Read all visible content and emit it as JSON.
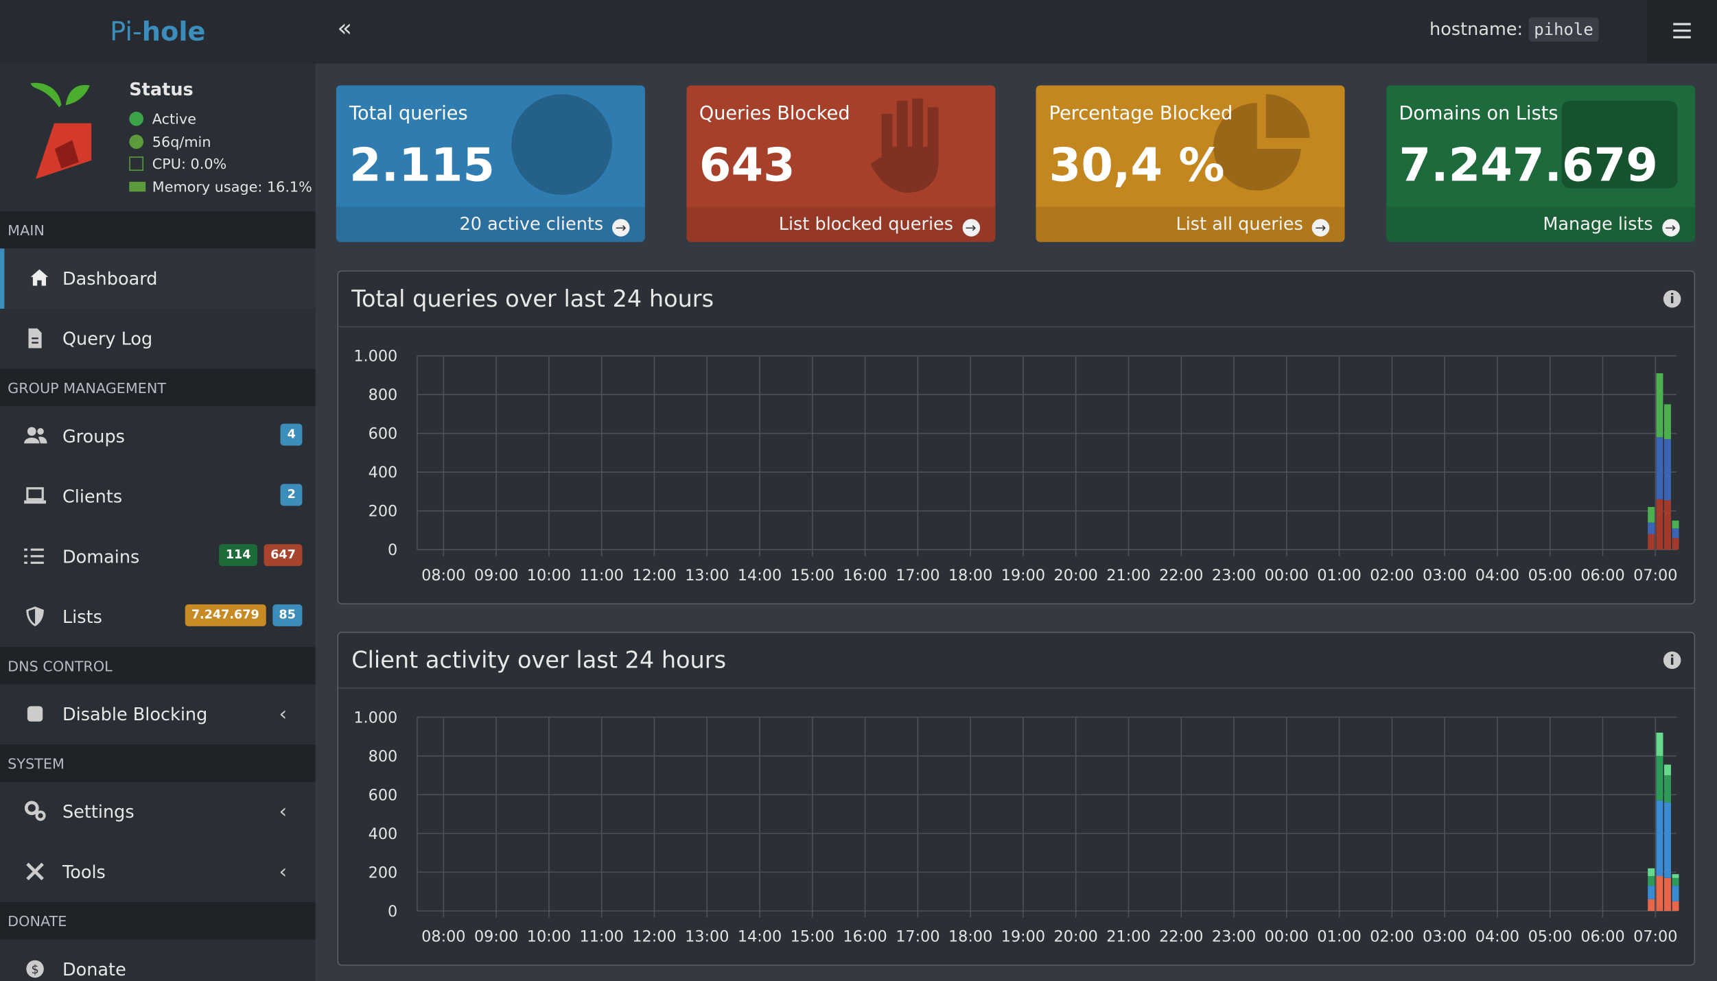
{
  "header": {
    "logo_pi": "Pi-",
    "logo_hole": "hole",
    "hostname_label": "hostname:",
    "hostname": "pihole"
  },
  "status": {
    "title": "Status",
    "active": "Active",
    "rate": "56q/min",
    "cpu": "CPU: 0.0%",
    "memory": "Memory usage: 16.1%"
  },
  "sidebar": [
    {
      "section": "MAIN",
      "items": [
        {
          "label": "Dashboard",
          "icon": "home",
          "active": true
        },
        {
          "label": "Query Log",
          "icon": "file"
        }
      ]
    },
    {
      "section": "GROUP MANAGEMENT",
      "items": [
        {
          "label": "Groups",
          "icon": "users",
          "badges": [
            {
              "text": "4",
              "color": "#3c8dbc"
            }
          ]
        },
        {
          "label": "Clients",
          "icon": "laptop",
          "badges": [
            {
              "text": "2",
              "color": "#3c8dbc"
            }
          ]
        },
        {
          "label": "Domains",
          "icon": "list",
          "badges": [
            {
              "text": "114",
              "color": "#1e6b3a"
            },
            {
              "text": "647",
              "color": "#a8432d"
            }
          ]
        },
        {
          "label": "Lists",
          "icon": "shield",
          "badges": [
            {
              "text": "7.247.679",
              "color": "#c88a22"
            },
            {
              "text": "85",
              "color": "#3c8dbc"
            }
          ]
        }
      ]
    },
    {
      "section": "DNS CONTROL",
      "items": [
        {
          "label": "Disable Blocking",
          "icon": "stop",
          "chevron": true
        }
      ]
    },
    {
      "section": "SYSTEM",
      "items": [
        {
          "label": "Settings",
          "icon": "gear",
          "chevron": true
        },
        {
          "label": "Tools",
          "icon": "tools",
          "chevron": true
        }
      ]
    },
    {
      "section": "DONATE",
      "items": [
        {
          "label": "Donate",
          "icon": "coin"
        }
      ]
    }
  ],
  "cards": [
    {
      "title": "Total queries",
      "value": "2.115",
      "link": "20 active clients",
      "color": "#2f7cb0",
      "icon": "globe"
    },
    {
      "title": "Queries Blocked",
      "value": "643",
      "link": "List blocked queries",
      "color": "#a6402b",
      "icon": "hand"
    },
    {
      "title": "Percentage Blocked",
      "value": "30,4 %",
      "link": "List all queries",
      "color": "#c4861f",
      "icon": "pie"
    },
    {
      "title": "Domains on Lists",
      "value": "7.247.679",
      "link": "Manage lists",
      "color": "#1d6a3c",
      "icon": "listbox"
    }
  ],
  "chart_data": [
    {
      "type": "bar",
      "stacked": true,
      "title": "Total queries over last 24 hours",
      "grid": true,
      "xlim": [
        -0.5,
        23.4
      ],
      "ylim": [
        0,
        1000
      ],
      "xticks": [
        {
          "value": 0,
          "label": "08:00"
        },
        {
          "value": 1,
          "label": "09:00"
        },
        {
          "value": 2,
          "label": "10:00"
        },
        {
          "value": 3,
          "label": "11:00"
        },
        {
          "value": 4,
          "label": "12:00"
        },
        {
          "value": 5,
          "label": "13:00"
        },
        {
          "value": 6,
          "label": "14:00"
        },
        {
          "value": 7,
          "label": "15:00"
        },
        {
          "value": 8,
          "label": "16:00"
        },
        {
          "value": 9,
          "label": "17:00"
        },
        {
          "value": 10,
          "label": "18:00"
        },
        {
          "value": 11,
          "label": "19:00"
        },
        {
          "value": 12,
          "label": "20:00"
        },
        {
          "value": 13,
          "label": "21:00"
        },
        {
          "value": 14,
          "label": "22:00"
        },
        {
          "value": 15,
          "label": "23:00"
        },
        {
          "value": 16,
          "label": "00:00"
        },
        {
          "value": 17,
          "label": "01:00"
        },
        {
          "value": 18,
          "label": "02:00"
        },
        {
          "value": 19,
          "label": "03:00"
        },
        {
          "value": 20,
          "label": "04:00"
        },
        {
          "value": 21,
          "label": "05:00"
        },
        {
          "value": 22,
          "label": "06:00"
        },
        {
          "value": 23,
          "label": "07:00"
        }
      ],
      "yticks": [
        0,
        200,
        400,
        600,
        800,
        {
          "value": 1000,
          "label": "1.000"
        }
      ],
      "x": [
        22.92,
        23.08,
        23.23,
        23.38
      ],
      "series": [
        {
          "color": "#a33a2c",
          "values": [
            80,
            260,
            255,
            60
          ]
        },
        {
          "color": "#3c64b4",
          "values": [
            60,
            320,
            315,
            50
          ]
        },
        {
          "color": "#4caf50",
          "values": [
            80,
            330,
            180,
            40
          ]
        }
      ]
    },
    {
      "type": "bar",
      "stacked": true,
      "title": "Client activity over last 24 hours",
      "grid": true,
      "xlim": [
        -0.5,
        23.4
      ],
      "ylim": [
        0,
        1000
      ],
      "xticks": [
        {
          "value": 0,
          "label": "08:00"
        },
        {
          "value": 1,
          "label": "09:00"
        },
        {
          "value": 2,
          "label": "10:00"
        },
        {
          "value": 3,
          "label": "11:00"
        },
        {
          "value": 4,
          "label": "12:00"
        },
        {
          "value": 5,
          "label": "13:00"
        },
        {
          "value": 6,
          "label": "14:00"
        },
        {
          "value": 7,
          "label": "15:00"
        },
        {
          "value": 8,
          "label": "16:00"
        },
        {
          "value": 9,
          "label": "17:00"
        },
        {
          "value": 10,
          "label": "18:00"
        },
        {
          "value": 11,
          "label": "19:00"
        },
        {
          "value": 12,
          "label": "20:00"
        },
        {
          "value": 13,
          "label": "21:00"
        },
        {
          "value": 14,
          "label": "22:00"
        },
        {
          "value": 15,
          "label": "23:00"
        },
        {
          "value": 16,
          "label": "00:00"
        },
        {
          "value": 17,
          "label": "01:00"
        },
        {
          "value": 18,
          "label": "02:00"
        },
        {
          "value": 19,
          "label": "03:00"
        },
        {
          "value": 20,
          "label": "04:00"
        },
        {
          "value": 21,
          "label": "05:00"
        },
        {
          "value": 22,
          "label": "06:00"
        },
        {
          "value": 23,
          "label": "07:00"
        }
      ],
      "yticks": [
        0,
        200,
        400,
        600,
        800,
        {
          "value": 1000,
          "label": "1.000"
        }
      ],
      "x": [
        22.92,
        23.08,
        23.23,
        23.38
      ],
      "series": [
        {
          "color": "#e8664a",
          "values": [
            60,
            180,
            170,
            50
          ]
        },
        {
          "color": "#3a8ad4",
          "values": [
            70,
            390,
            390,
            80
          ]
        },
        {
          "color": "#2e9a58",
          "values": [
            50,
            230,
            140,
            40
          ]
        },
        {
          "color": "#66d98c",
          "values": [
            40,
            120,
            55,
            20
          ]
        }
      ]
    }
  ]
}
